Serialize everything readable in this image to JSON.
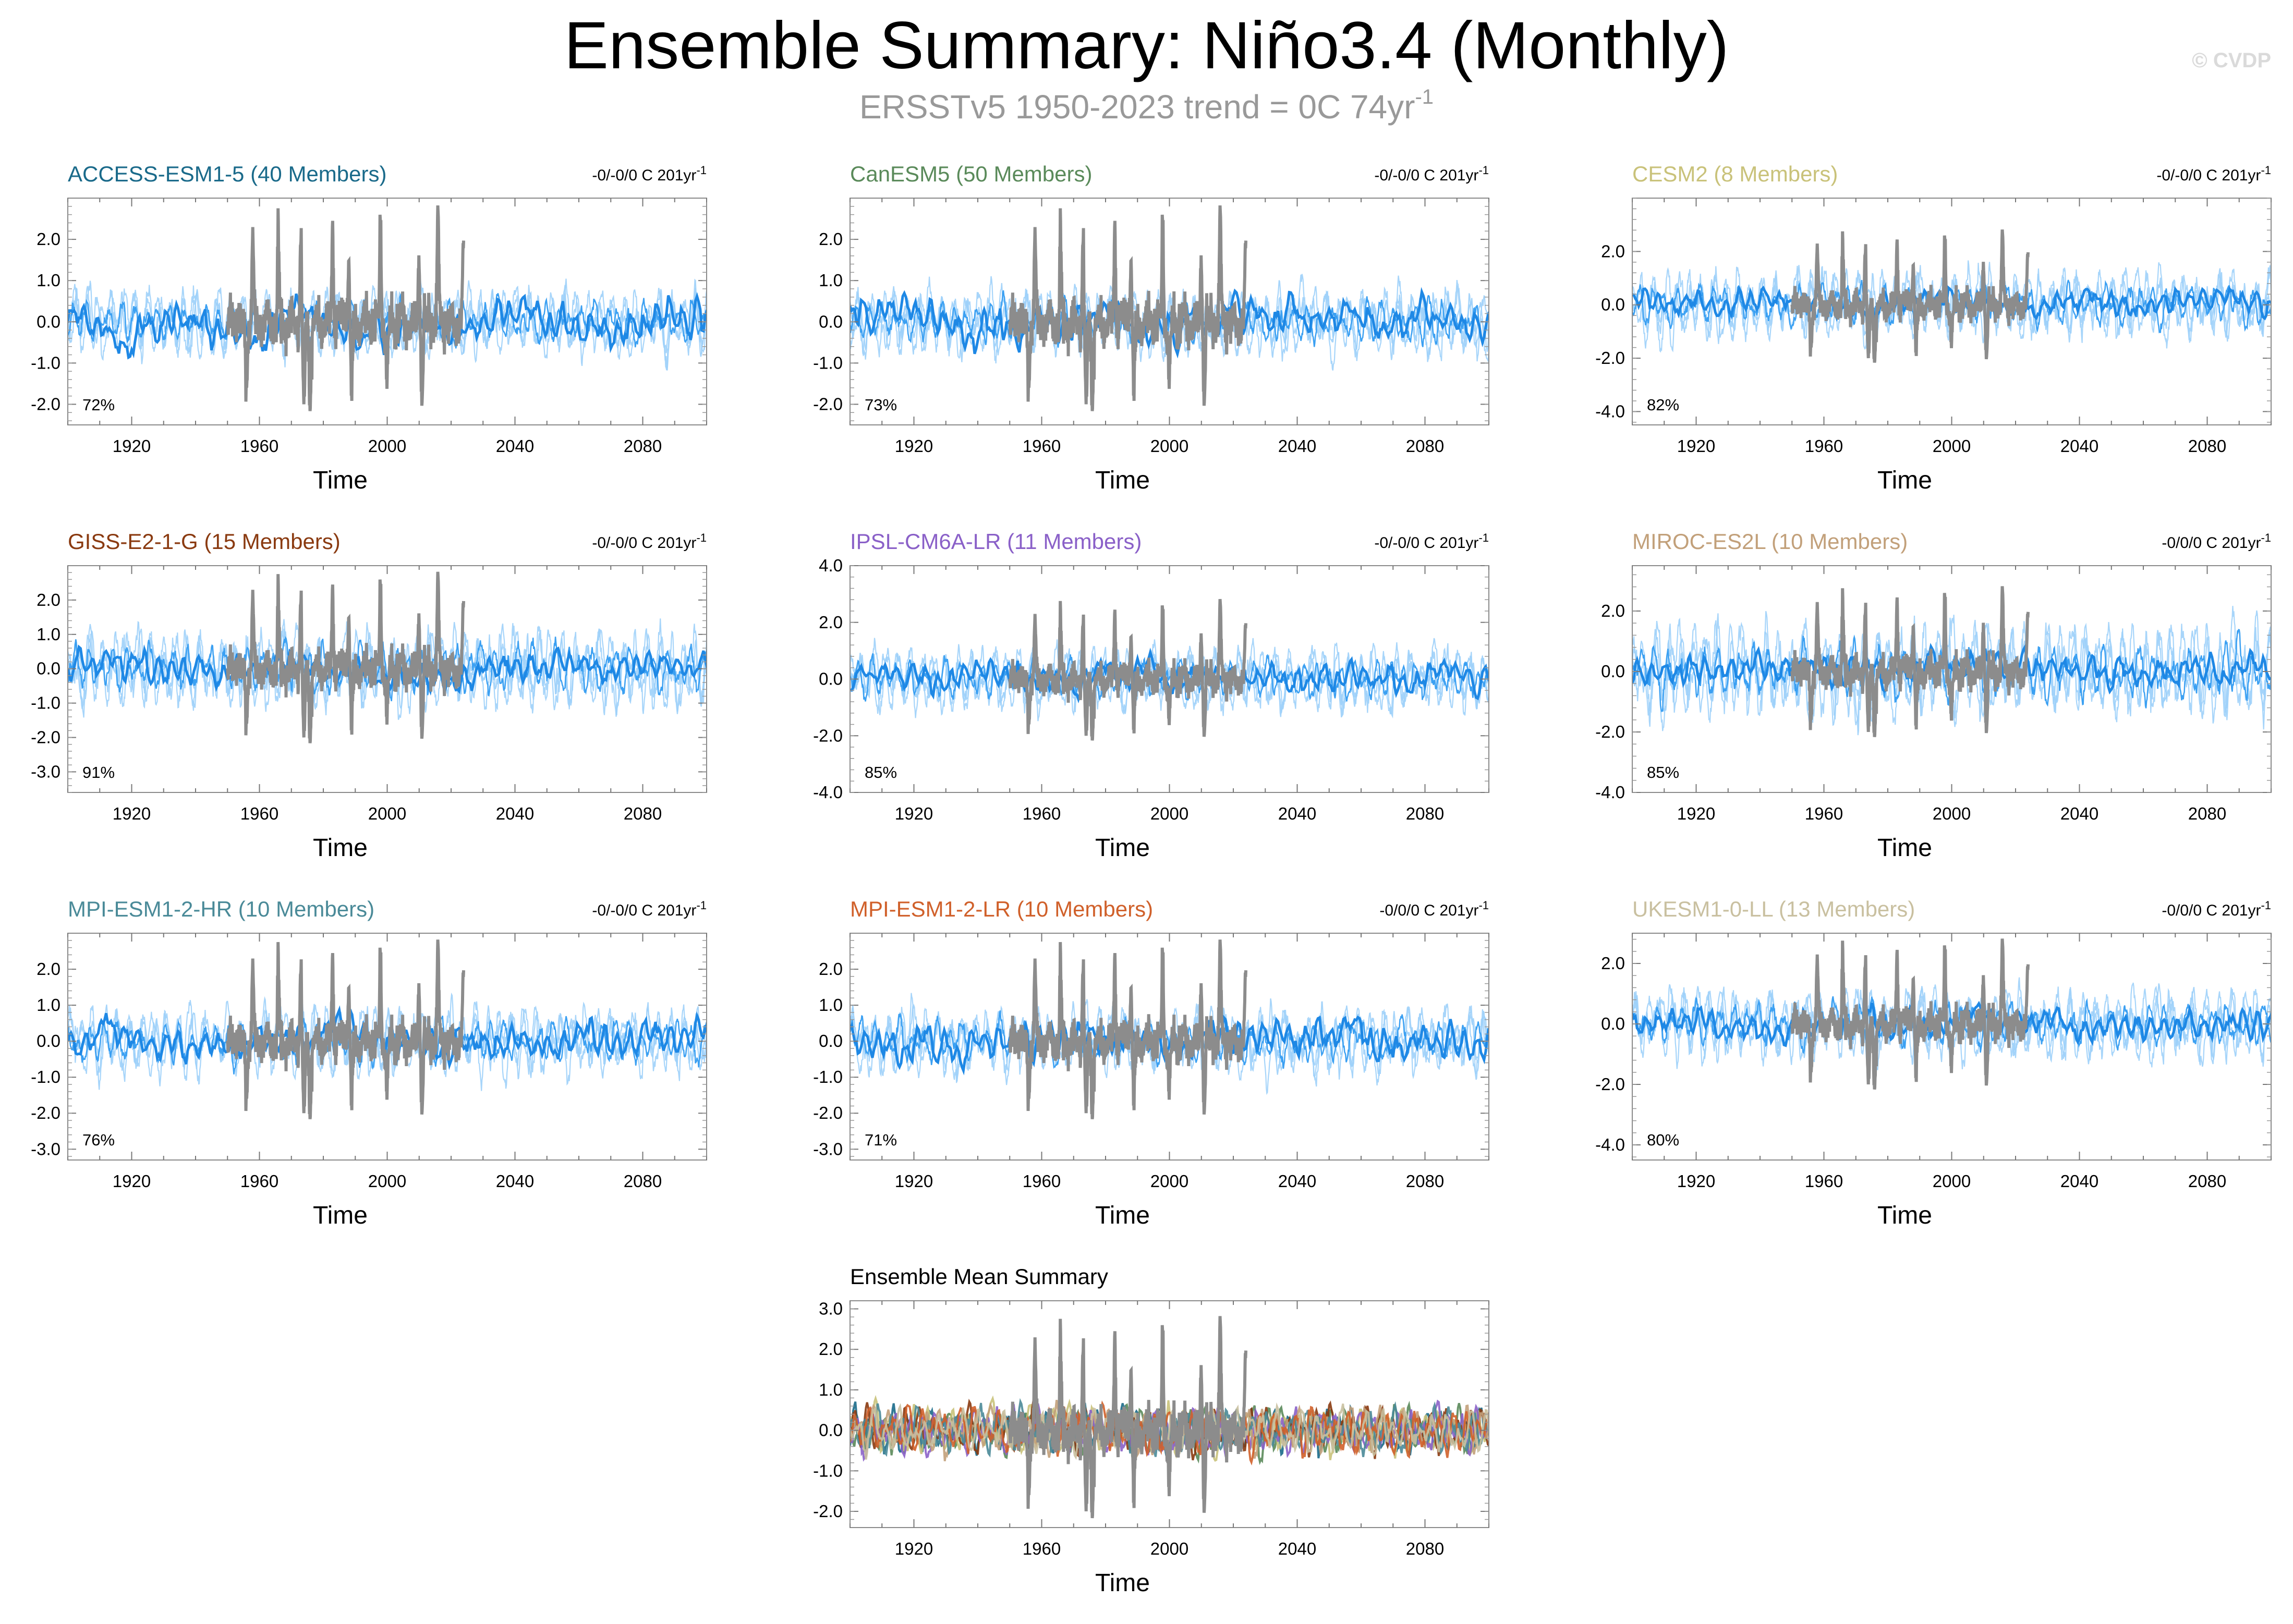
{
  "title": "Ensemble Summary: Niño3.4 (Monthly)",
  "subtitle": "ERSSTv5 1950-2023 trend = 0C 74yr",
  "subtitle_superscript": "-1",
  "watermark": "© CVDP",
  "colors": {
    "observations": "#8c8c8c",
    "member_spread_light": "#9dd0fa",
    "member_spread_dark": "#3ba0f2",
    "ensemble_mean": "#1e88e5"
  },
  "chart_data": [
    {
      "type": "line",
      "title": "ACCESS-ESM1-5 (40 Members)",
      "title_color": "#1a6a8a",
      "trend": "-0/-0/0 C 201yr",
      "trend_sup": "-1",
      "pct": "72%",
      "xlabel": "Time",
      "xlim": [
        1900,
        2100
      ],
      "xticks": [
        "1920",
        "1960",
        "2000",
        "2040",
        "2080"
      ],
      "ylim": [
        -2.5,
        3.0
      ],
      "yticks": [
        "2.0",
        "1.0",
        "0.0",
        "-1.0",
        "-2.0"
      ],
      "ytick_values": [
        2,
        1,
        0,
        -1,
        -2
      ],
      "spread": 1.4
    },
    {
      "type": "line",
      "title": "CanESM5 (50 Members)",
      "title_color": "#5a8a5a",
      "trend": "-0/-0/0 C 201yr",
      "trend_sup": "-1",
      "pct": "73%",
      "xlabel": "Time",
      "xlim": [
        1900,
        2100
      ],
      "xticks": [
        "1920",
        "1960",
        "2000",
        "2040",
        "2080"
      ],
      "ylim": [
        -2.5,
        3.0
      ],
      "yticks": [
        "2.0",
        "1.0",
        "0.0",
        "-1.0",
        "-2.0"
      ],
      "ytick_values": [
        2,
        1,
        0,
        -1,
        -2
      ],
      "spread": 1.4
    },
    {
      "type": "line",
      "title": "CESM2 (8 Members)",
      "title_color": "#c9c27a",
      "trend": "-0/-0/0 C 201yr",
      "trend_sup": "-1",
      "pct": "82%",
      "xlabel": "Time",
      "xlim": [
        1900,
        2100
      ],
      "xticks": [
        "1920",
        "1960",
        "2000",
        "2040",
        "2080"
      ],
      "ylim": [
        -4.5,
        4.0
      ],
      "yticks": [
        "2.0",
        "0.0",
        "-2.0",
        "-4.0"
      ],
      "ytick_values": [
        2,
        0,
        -2,
        -4
      ],
      "spread": 2.2
    },
    {
      "type": "line",
      "title": "GISS-E2-1-G (15 Members)",
      "title_color": "#8a3a10",
      "trend": "-0/-0/0 C 201yr",
      "trend_sup": "-1",
      "pct": "91%",
      "xlabel": "Time",
      "xlim": [
        1900,
        2100
      ],
      "xticks": [
        "1920",
        "1960",
        "2000",
        "2040",
        "2080"
      ],
      "ylim": [
        -3.6,
        3.0
      ],
      "yticks": [
        "2.0",
        "1.0",
        "0.0",
        "-1.0",
        "-2.0",
        "-3.0"
      ],
      "ytick_values": [
        2,
        1,
        0,
        -1,
        -2,
        -3
      ],
      "spread": 2.0
    },
    {
      "type": "line",
      "title": "IPSL-CM6A-LR (11 Members)",
      "title_color": "#8a60c8",
      "trend": "-0/-0/0 C 201yr",
      "trend_sup": "-1",
      "pct": "85%",
      "xlabel": "Time",
      "xlim": [
        1900,
        2100
      ],
      "xticks": [
        "1920",
        "1960",
        "2000",
        "2040",
        "2080"
      ],
      "ylim": [
        -4.0,
        4.0
      ],
      "yticks": [
        "4.0",
        "2.0",
        "0.0",
        "-2.0",
        "-4.0"
      ],
      "ytick_values": [
        4,
        2,
        0,
        -2,
        -4
      ],
      "spread": 1.9
    },
    {
      "type": "line",
      "title": "MIROC-ES2L (10 Members)",
      "title_color": "#c2a07a",
      "trend": "-0/0/0 C 201yr",
      "trend_sup": "-1",
      "pct": "85%",
      "xlabel": "Time",
      "xlim": [
        1900,
        2100
      ],
      "xticks": [
        "1920",
        "1960",
        "2000",
        "2040",
        "2080"
      ],
      "ylim": [
        -4.0,
        3.5
      ],
      "yticks": [
        "2.0",
        "0.0",
        "-2.0",
        "-4.0"
      ],
      "ytick_values": [
        2,
        0,
        -2,
        -4
      ],
      "spread": 2.6
    },
    {
      "type": "line",
      "title": "MPI-ESM1-2-HR (10 Members)",
      "title_color": "#4a8a98",
      "trend": "-0/-0/0 C 201yr",
      "trend_sup": "-1",
      "pct": "76%",
      "xlabel": "Time",
      "xlim": [
        1900,
        2100
      ],
      "xticks": [
        "1920",
        "1960",
        "2000",
        "2040",
        "2080"
      ],
      "ylim": [
        -3.3,
        3.0
      ],
      "yticks": [
        "2.0",
        "1.0",
        "0.0",
        "-1.0",
        "-2.0",
        "-3.0"
      ],
      "ytick_values": [
        2,
        1,
        0,
        -1,
        -2,
        -3
      ],
      "spread": 1.6
    },
    {
      "type": "line",
      "title": "MPI-ESM1-2-LR (10 Members)",
      "title_color": "#d0602a",
      "trend": "-0/0/0 C 201yr",
      "trend_sup": "-1",
      "pct": "71%",
      "xlabel": "Time",
      "xlim": [
        1900,
        2100
      ],
      "xticks": [
        "1920",
        "1960",
        "2000",
        "2040",
        "2080"
      ],
      "ylim": [
        -3.3,
        3.0
      ],
      "yticks": [
        "2.0",
        "1.0",
        "0.0",
        "-1.0",
        "-2.0",
        "-3.0"
      ],
      "ytick_values": [
        2,
        1,
        0,
        -1,
        -2,
        -3
      ],
      "spread": 1.6
    },
    {
      "type": "line",
      "title": "UKESM1-0-LL (13 Members)",
      "title_color": "#c9c0a0",
      "trend": "-0/0/0 C 201yr",
      "trend_sup": "-1",
      "pct": "80%",
      "xlabel": "Time",
      "xlim": [
        1900,
        2100
      ],
      "xticks": [
        "1920",
        "1960",
        "2000",
        "2040",
        "2080"
      ],
      "ylim": [
        -4.5,
        3.0
      ],
      "yticks": [
        "2.0",
        "0.0",
        "-2.0",
        "-4.0"
      ],
      "ytick_values": [
        2,
        0,
        -2,
        -4
      ],
      "spread": 2.0
    },
    {
      "type": "line",
      "title": "Ensemble Mean Summary",
      "title_color": "#000000",
      "xlabel": "Time",
      "xlim": [
        1900,
        2100
      ],
      "xticks": [
        "1920",
        "1960",
        "2000",
        "2040",
        "2080"
      ],
      "ylim": [
        -2.4,
        3.2
      ],
      "yticks": [
        "3.0",
        "2.0",
        "1.0",
        "0.0",
        "-1.0",
        "-2.0"
      ],
      "ytick_values": [
        3,
        2,
        1,
        0,
        -1,
        -2
      ],
      "series_colors": [
        "#1a6a8a",
        "#5a8a5a",
        "#c9c27a",
        "#8a3a10",
        "#8a60c8",
        "#c2a07a",
        "#4a8a98",
        "#d0602a",
        "#c9c0a0"
      ]
    }
  ]
}
